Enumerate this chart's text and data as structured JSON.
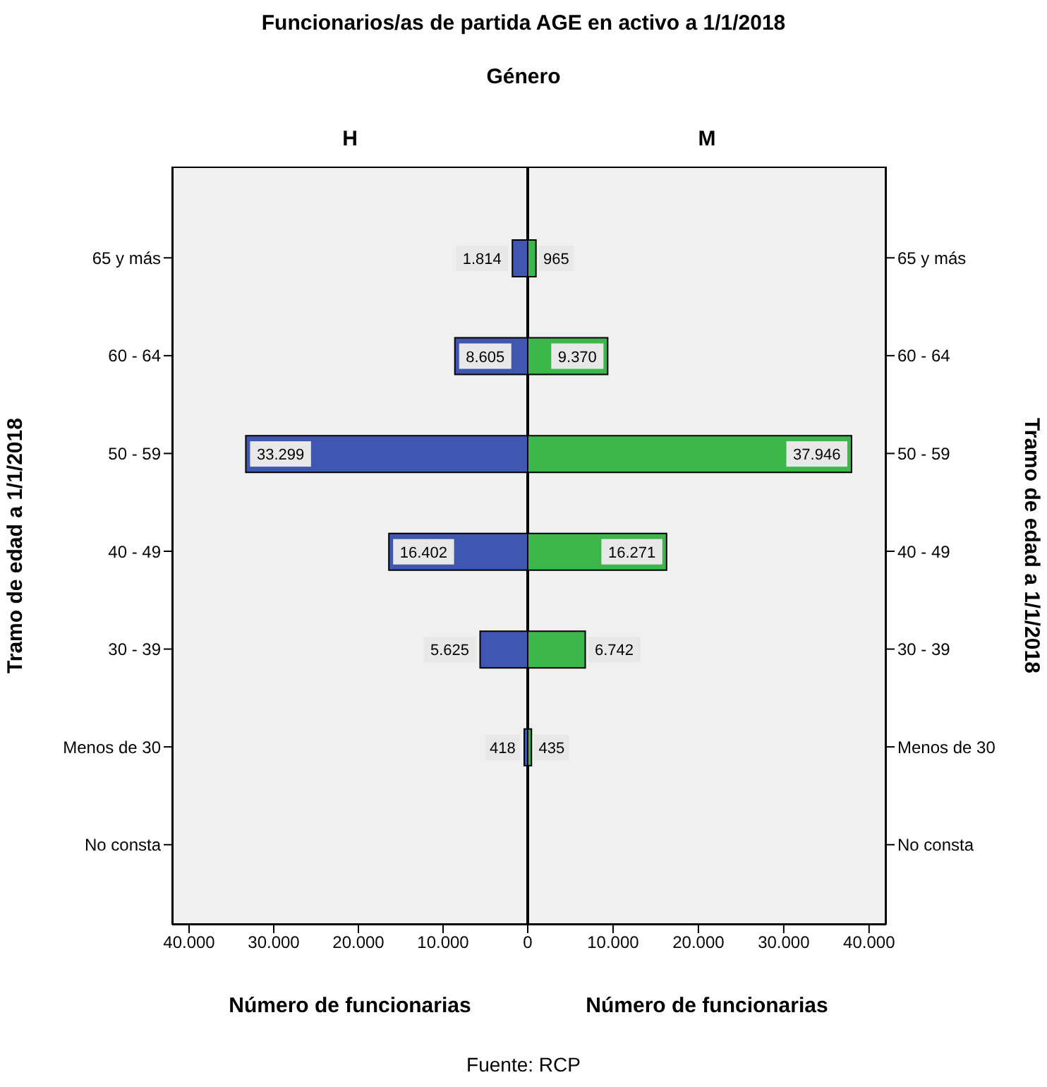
{
  "chart_data": [
    {
      "type": "bar",
      "orientation": "horizontal",
      "title": "Funcionarios/as de partida AGE en activo a 1/1/2018",
      "subtitle": "Género",
      "xlabel": "Número de funcionarias",
      "ylabel": "Tramo de edad a 1/1/2018",
      "categories": [
        "65 y más",
        "60 - 64",
        "50 - 59",
        "40 - 49",
        "30 - 39",
        "Menos de 30",
        "No consta"
      ],
      "series": [
        {
          "name": "H",
          "color": "#3f57b0",
          "values": [
            1814,
            8605,
            33299,
            16402,
            5625,
            418,
            null
          ],
          "value_labels": [
            "1.814",
            "8.605",
            "33.299",
            "16.402",
            "5.625",
            "418",
            null
          ]
        }
      ],
      "xlim": [
        42000,
        0
      ],
      "xticks": [
        {
          "value": 40000,
          "label": "40.000"
        },
        {
          "value": 30000,
          "label": "30.000"
        },
        {
          "value": 20000,
          "label": "20.000"
        },
        {
          "value": 10000,
          "label": "10.000"
        },
        {
          "value": 0,
          "label": null
        }
      ],
      "grid": false
    },
    {
      "type": "bar",
      "orientation": "horizontal",
      "xlabel": "Número de funcionarias",
      "ylabel": "Tramo de edad a 1/1/2018",
      "annotations": [
        "Fuente: RCP"
      ],
      "categories": [
        "65 y más",
        "60 - 64",
        "50 - 59",
        "40 - 49",
        "30 - 39",
        "Menos de 30",
        "No consta"
      ],
      "series": [
        {
          "name": "M",
          "color": "#3cb84a",
          "values": [
            965,
            9370,
            37946,
            16271,
            6742,
            435,
            null
          ],
          "value_labels": [
            "965",
            "9.370",
            "37.946",
            "16.271",
            "6.742",
            "435",
            null
          ]
        }
      ],
      "xlim": [
        0,
        42000
      ],
      "xticks": [
        0,
        {
          "value": 10000,
          "label": "10.000"
        },
        {
          "value": 20000,
          "label": "20.000"
        },
        {
          "value": 30000,
          "label": "30.000"
        },
        {
          "value": 40000,
          "label": "40.000"
        }
      ],
      "grid": false
    }
  ]
}
